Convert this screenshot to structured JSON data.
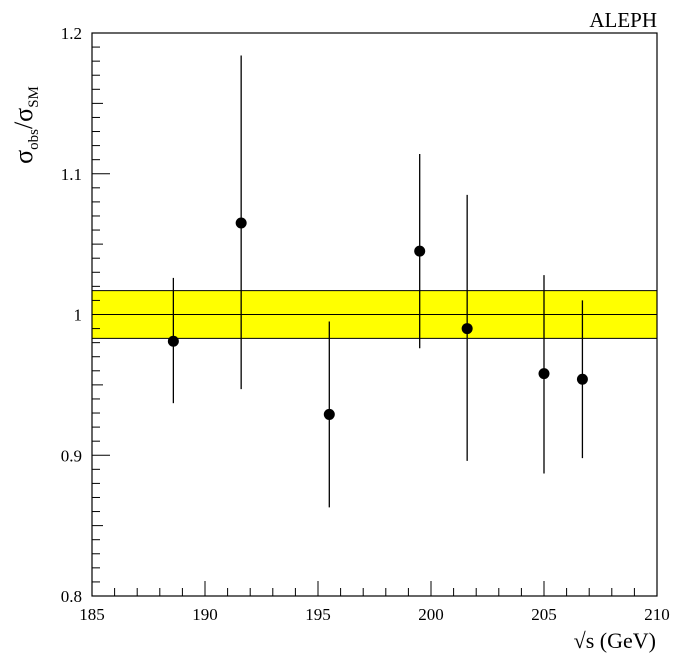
{
  "chart_data": {
    "type": "scatter",
    "annotation": "ALEPH",
    "xlabel": "√s (GeV)",
    "ylabel": {
      "base": "σ",
      "sub1": "obs",
      "sep": "/",
      "sub2": "SM"
    },
    "xlim": [
      185,
      210
    ],
    "ylim": [
      0.8,
      1.2
    ],
    "x_ticks": [
      185,
      190,
      195,
      200,
      205,
      210
    ],
    "x_tick_labels": [
      "185",
      "190",
      "195",
      "200",
      "205",
      "210"
    ],
    "y_ticks": [
      0.8,
      0.9,
      1.0,
      1.1,
      1.2
    ],
    "y_tick_labels": [
      "0.8",
      "0.9",
      "1",
      "1.1",
      "1.2"
    ],
    "grid": false,
    "reference_line": 1.0,
    "band": {
      "low": 0.983,
      "high": 1.017,
      "color": "#ffff00"
    },
    "points": [
      {
        "x": 188.6,
        "y": 0.981,
        "err_low": 0.937,
        "err_high": 1.026
      },
      {
        "x": 191.6,
        "y": 1.065,
        "err_low": 0.947,
        "err_high": 1.184
      },
      {
        "x": 195.5,
        "y": 0.929,
        "err_low": 0.863,
        "err_high": 0.995
      },
      {
        "x": 199.5,
        "y": 1.045,
        "err_low": 0.976,
        "err_high": 1.114
      },
      {
        "x": 201.6,
        "y": 0.99,
        "err_low": 0.896,
        "err_high": 1.085
      },
      {
        "x": 205.0,
        "y": 0.958,
        "err_low": 0.887,
        "err_high": 1.028
      },
      {
        "x": 206.7,
        "y": 0.954,
        "err_low": 0.898,
        "err_high": 1.01
      }
    ],
    "colors": {
      "marker": "#000000",
      "band": "#ffff00",
      "axis": "#000000"
    }
  }
}
